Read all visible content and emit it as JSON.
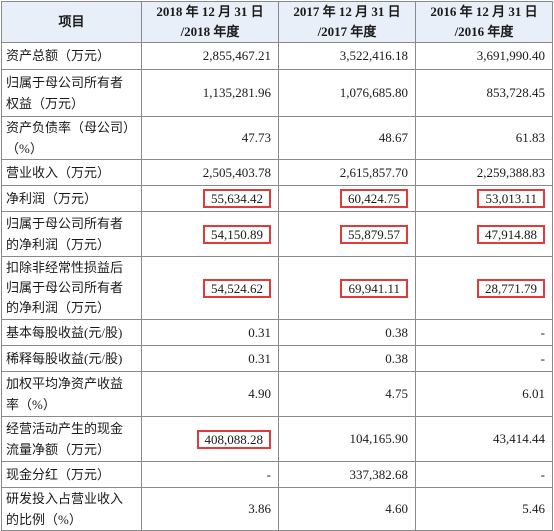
{
  "header": {
    "item": "项目",
    "col1_line1": "2018 年 12 月 31 日",
    "col1_line2": "/2018 年度",
    "col2_line1": "2017 年 12 月 31 日",
    "col2_line2": "/2017 年度",
    "col3_line1": "2016 年 12 月 31 日",
    "col3_line2": "/2016 年度"
  },
  "rows": [
    {
      "label": [
        "资产总额（万元）"
      ],
      "v2018": "2,855,467.21",
      "v2017": "3,522,416.18",
      "v2016": "3,691,990.40"
    },
    {
      "label": [
        "归属于母公司所有者",
        "权益（万元）"
      ],
      "v2018": "1,135,281.96",
      "v2017": "1,076,685.80",
      "v2016": "853,728.45"
    },
    {
      "label": [
        "资产负债率（母公司）",
        "（%）"
      ],
      "v2018": "47.73",
      "v2017": "48.67",
      "v2016": "61.83"
    },
    {
      "label": [
        "营业收入（万元）"
      ],
      "v2018": "2,505,403.78",
      "v2017": "2,615,857.70",
      "v2016": "2,259,388.83"
    },
    {
      "label": [
        "净利润（万元）"
      ],
      "v2018": "55,634.42",
      "v2017": "60,424.75",
      "v2016": "53,013.11"
    },
    {
      "label": [
        "归属于母公司所有者",
        "的净利润（万元）"
      ],
      "v2018": "54,150.89",
      "v2017": "55,879.57",
      "v2016": "47,914.88"
    },
    {
      "label": [
        "扣除非经常性损益后",
        "归属于母公司所有者",
        "的净利润（万元）"
      ],
      "v2018": "54,524.62",
      "v2017": "69,941.11",
      "v2016": "28,771.79"
    },
    {
      "label": [
        "基本每股收益(元/股)"
      ],
      "v2018": "0.31",
      "v2017": "0.38",
      "v2016": "-"
    },
    {
      "label": [
        "稀释每股收益(元/股)"
      ],
      "v2018": "0.31",
      "v2017": "0.38",
      "v2016": "-"
    },
    {
      "label": [
        "加权平均净资产收益",
        "率（%）"
      ],
      "v2018": "4.90",
      "v2017": "4.75",
      "v2016": "6.01"
    },
    {
      "label": [
        "经营活动产生的现金",
        "流量净额（万元）"
      ],
      "v2018": "408,088.28",
      "v2017": "104,165.90",
      "v2016": "43,414.44"
    },
    {
      "label": [
        "现金分红（万元）"
      ],
      "v2018": "-",
      "v2017": "337,382.68",
      "v2016": "-"
    },
    {
      "label": [
        "研发投入占营业收入",
        "的比例（%）"
      ],
      "v2018": "3.86",
      "v2017": "4.60",
      "v2016": "5.46"
    }
  ],
  "highlight_color": "#e03a3a",
  "header_bg": "#e8eff8"
}
